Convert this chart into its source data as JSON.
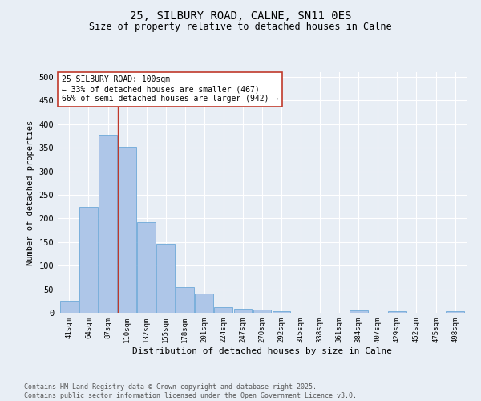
{
  "title": "25, SILBURY ROAD, CALNE, SN11 0ES",
  "subtitle": "Size of property relative to detached houses in Calne",
  "xlabel": "Distribution of detached houses by size in Calne",
  "ylabel": "Number of detached properties",
  "categories": [
    "41sqm",
    "64sqm",
    "87sqm",
    "110sqm",
    "132sqm",
    "155sqm",
    "178sqm",
    "201sqm",
    "224sqm",
    "247sqm",
    "270sqm",
    "292sqm",
    "315sqm",
    "338sqm",
    "361sqm",
    "384sqm",
    "407sqm",
    "429sqm",
    "452sqm",
    "475sqm",
    "498sqm"
  ],
  "values": [
    25,
    225,
    378,
    352,
    192,
    147,
    55,
    41,
    12,
    9,
    7,
    4,
    0,
    0,
    0,
    5,
    0,
    3,
    0,
    0,
    4
  ],
  "bar_color": "#aec6e8",
  "bar_edge_color": "#5a9fd4",
  "vline_x_idx": 2.5,
  "vline_color": "#c0392b",
  "annotation_text": "25 SILBURY ROAD: 100sqm\n← 33% of detached houses are smaller (467)\n66% of semi-detached houses are larger (942) →",
  "annotation_box_color": "#ffffff",
  "annotation_box_edge_color": "#c0392b",
  "footer_text": "Contains HM Land Registry data © Crown copyright and database right 2025.\nContains public sector information licensed under the Open Government Licence v3.0.",
  "bg_color": "#e8eef5",
  "grid_color": "#ffffff",
  "ylim": [
    0,
    510
  ],
  "yticks": [
    0,
    50,
    100,
    150,
    200,
    250,
    300,
    350,
    400,
    450,
    500
  ]
}
